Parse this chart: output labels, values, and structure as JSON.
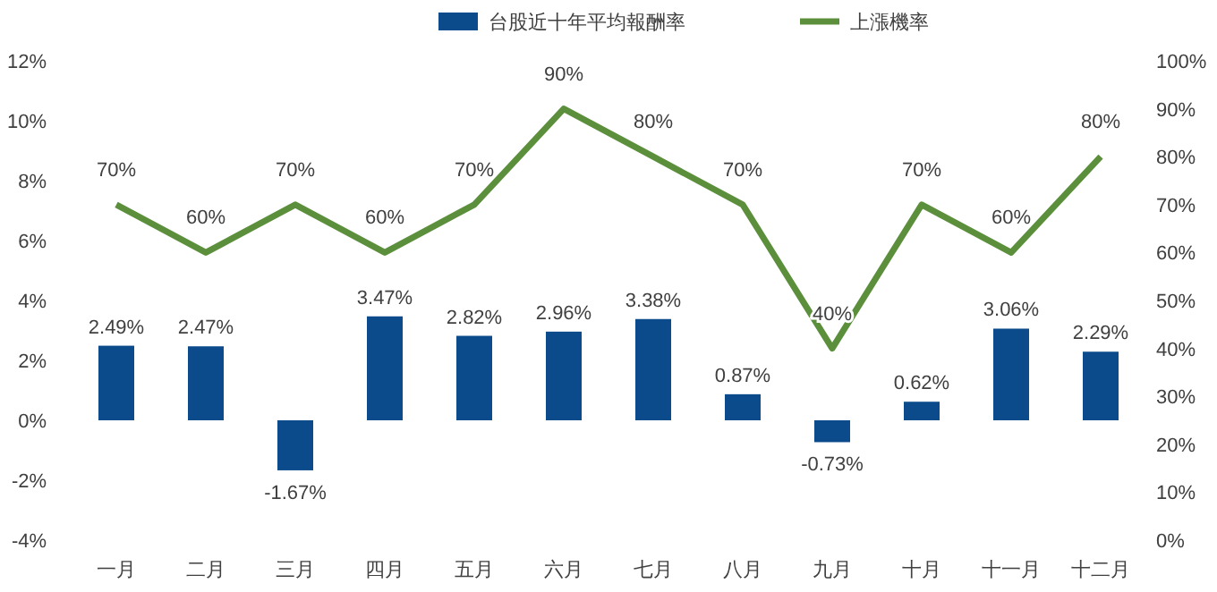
{
  "chart_data": {
    "type": "bar",
    "categories": [
      "一月",
      "二月",
      "三月",
      "四月",
      "五月",
      "六月",
      "七月",
      "八月",
      "九月",
      "十月",
      "十一月",
      "十二月"
    ],
    "series": [
      {
        "name": "台股近十年平均報酬率",
        "color": "#0b4a8b",
        "values": [
          2.49,
          2.47,
          -1.67,
          3.47,
          2.82,
          2.96,
          3.38,
          0.87,
          -0.73,
          0.62,
          3.06,
          2.29
        ],
        "value_labels": [
          "2.49%",
          "2.47%",
          "-1.67%",
          "3.47%",
          "2.82%",
          "2.96%",
          "3.38%",
          "0.87%",
          "-0.73%",
          "0.62%",
          "3.06%",
          "2.29%"
        ]
      },
      {
        "name": "上漲機率",
        "type": "line",
        "axis": "y2",
        "color": "#5b8f3b",
        "values": [
          70,
          60,
          70,
          60,
          70,
          90,
          80,
          70,
          40,
          70,
          60,
          80
        ],
        "value_labels": [
          "70%",
          "60%",
          "70%",
          "60%",
          "70%",
          "90%",
          "80%",
          "70%",
          "40%",
          "70%",
          "60%",
          "80%"
        ]
      }
    ],
    "ylim": [
      -4,
      12
    ],
    "yticks": [
      {
        "value": -4,
        "label": "-4%"
      },
      {
        "value": -2,
        "label": "-2%"
      },
      {
        "value": 0,
        "label": "0%"
      },
      {
        "value": 2,
        "label": "2%"
      },
      {
        "value": 4,
        "label": "4%"
      },
      {
        "value": 6,
        "label": "6%"
      },
      {
        "value": 8,
        "label": "8%"
      },
      {
        "value": 10,
        "label": "10%"
      },
      {
        "value": 12,
        "label": "12%"
      }
    ],
    "y2lim": [
      0,
      100
    ],
    "y2ticks": [
      {
        "value": 0,
        "label": "0%"
      },
      {
        "value": 10,
        "label": "10%"
      },
      {
        "value": 20,
        "label": "20%"
      },
      {
        "value": 30,
        "label": "30%"
      },
      {
        "value": 40,
        "label": "40%"
      },
      {
        "value": 50,
        "label": "50%"
      },
      {
        "value": 60,
        "label": "60%"
      },
      {
        "value": 70,
        "label": "70%"
      },
      {
        "value": 80,
        "label": "80%"
      },
      {
        "value": 90,
        "label": "90%"
      },
      {
        "value": 100,
        "label": "100%"
      }
    ],
    "legend": "top",
    "grid": false,
    "marker": "none",
    "line_style": "solid"
  }
}
